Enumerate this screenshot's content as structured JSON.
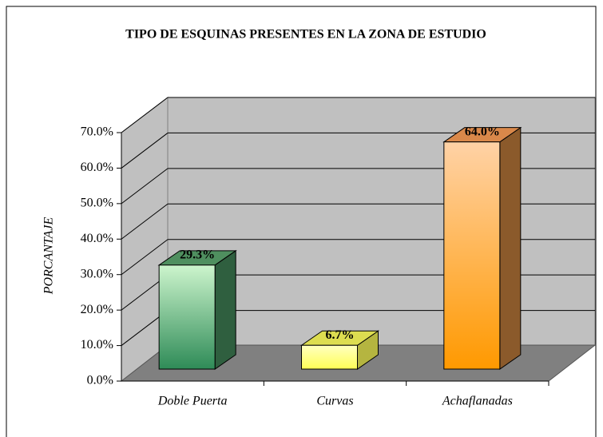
{
  "chart_data": {
    "type": "bar3d",
    "title": "TIPO DE ESQUINAS PRESENTES EN LA ZONA DE ESTUDIO",
    "y_label": "PORCANTAJE",
    "categories": [
      "Doble Puerta",
      "Curvas",
      "Achaflanadas"
    ],
    "values": [
      29.3,
      6.7,
      64.0
    ],
    "value_labels": [
      "29.3%",
      "6.7%",
      "64.0%"
    ],
    "colors": [
      "#3f9a62",
      "#ffff66",
      "#ff9d1a"
    ],
    "ylim": [
      0,
      70
    ],
    "yticks": [
      {
        "value": 0,
        "label": "0.0%"
      },
      {
        "value": 10,
        "label": "10.0%"
      },
      {
        "value": 20,
        "label": "20.0%"
      },
      {
        "value": 30,
        "label": "30.0%"
      },
      {
        "value": 40,
        "label": "40.0%"
      },
      {
        "value": 50,
        "label": "50.0%"
      },
      {
        "value": 60,
        "label": "60.0%"
      },
      {
        "value": 70,
        "label": "70.0%"
      }
    ],
    "grid": true
  }
}
